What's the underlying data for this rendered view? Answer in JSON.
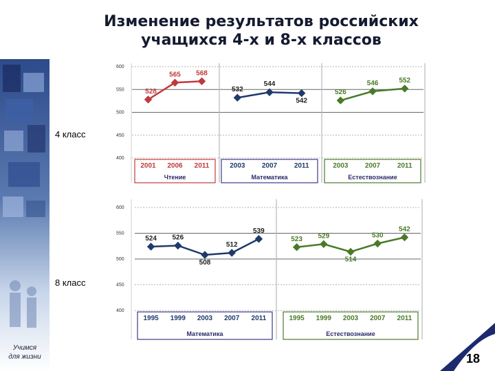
{
  "title": {
    "line1": "Изменение результатов российских",
    "line2": "учащихся 4-х и 8-х классов"
  },
  "colors": {
    "reading": "#c0393b",
    "math": "#1f3a6b",
    "science": "#4a7a28",
    "frame": "#3a3a8a",
    "frame_reading": "#c0393b",
    "frame_science": "#4a7a28",
    "footer_text": "#2a2a6a",
    "ribbon": "#1c2a6e"
  },
  "grade4_label": "4 класс",
  "grade8_label": "8 класс",
  "sidebar": {
    "motto_line1": "Учимся",
    "motto_line2": "для жизни"
  },
  "page_number": "18",
  "chart_data": [
    {
      "type": "line",
      "group": "4 класс",
      "y_ticks": [
        "600",
        "550",
        "500",
        "450",
        "400"
      ],
      "ylim": [
        400,
        600
      ],
      "panels": [
        {
          "name": "Чтение",
          "color_key": "reading",
          "x": [
            "2001",
            "2006",
            "2011"
          ],
          "values": [
            528,
            565,
            568
          ]
        },
        {
          "name": "Математика",
          "color_key": "math",
          "x": [
            "2003",
            "2007",
            "2011"
          ],
          "values": [
            532,
            544,
            542
          ]
        },
        {
          "name": "Естествознание",
          "color_key": "science",
          "x": [
            "2003",
            "2007",
            "2011"
          ],
          "values": [
            526,
            546,
            552
          ]
        }
      ]
    },
    {
      "type": "line",
      "group": "8 класс",
      "y_ticks": [
        "600",
        "550",
        "500",
        "450",
        "400"
      ],
      "ylim": [
        400,
        600
      ],
      "panels": [
        {
          "name": "Математика",
          "color_key": "math",
          "x": [
            "1995",
            "1999",
            "2003",
            "2007",
            "2011"
          ],
          "values": [
            524,
            526,
            508,
            512,
            539
          ]
        },
        {
          "name": "Естествознание",
          "color_key": "science",
          "x": [
            "1995",
            "1999",
            "2003",
            "2007",
            "2011"
          ],
          "values": [
            523,
            529,
            514,
            530,
            542
          ]
        }
      ]
    }
  ]
}
